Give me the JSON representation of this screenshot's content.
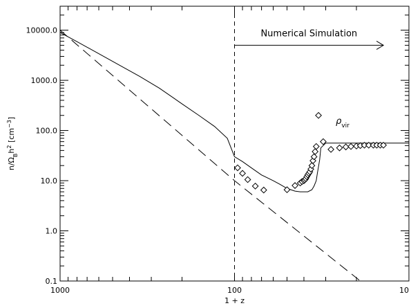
{
  "chart_data": {
    "type": "scatter",
    "x_scale": "log",
    "y_scale": "log",
    "x_reversed": true,
    "xlim": [
      1000,
      10
    ],
    "ylim": [
      0.1,
      30000
    ],
    "xlabel": "1 + z",
    "ylabel": "n/Ω_B h² [cm⁻³]",
    "ylabel_parts": {
      "main": "n/Ω",
      "sub": "B",
      "mid": "h",
      "sup": "2",
      "tail": " [cm",
      "sup2": "−3",
      "end": "]"
    },
    "x_ticks": [
      {
        "value": 1000,
        "label": "1000"
      },
      {
        "value": 100,
        "label": "100"
      },
      {
        "value": 10,
        "label": "10"
      }
    ],
    "y_ticks": [
      {
        "value": 0.1,
        "label": "0.1"
      },
      {
        "value": 1,
        "label": "1.0"
      },
      {
        "value": 10,
        "label": "10.0"
      },
      {
        "value": 100,
        "label": "100.0"
      },
      {
        "value": 1000,
        "label": "1000.0"
      },
      {
        "value": 10000,
        "label": "10000.0"
      }
    ],
    "grid": false,
    "annotations": {
      "simulation_label": "Numerical Simulation",
      "simulation_arrow_from_x": 100,
      "simulation_arrow_to_x": 14,
      "simulation_arrow_y": 5000,
      "vertical_line_x": 100,
      "rho_label_main": "ρ",
      "rho_label_sub": "vir",
      "rho_label_at": {
        "x": 24,
        "y": 135
      }
    },
    "series": [
      {
        "style": "solid-line",
        "x": [
          1000,
          800,
          600,
          450,
          350,
          270,
          200,
          160,
          130,
          110,
          100,
          90,
          80,
          70,
          60,
          55,
          50,
          45,
          42,
          40,
          38,
          36,
          35,
          34,
          33.5,
          32.5,
          32,
          30,
          20,
          10
        ],
        "y": [
          9000,
          5900,
          3400,
          1950,
          1200,
          700,
          340,
          200,
          120,
          70,
          30,
          24,
          18,
          13,
          10,
          8.5,
          7,
          6.2,
          6,
          6,
          6,
          6.6,
          7.8,
          10,
          14,
          26,
          45,
          56,
          56,
          56
        ]
      },
      {
        "style": "dashed-line",
        "x": [
          1000,
          100,
          19
        ],
        "y": [
          10000,
          10,
          0.1
        ]
      },
      {
        "style": "diamond-markers",
        "x": [
          96,
          90,
          84,
          76,
          68,
          50,
          45,
          42,
          41,
          40,
          39.5,
          39,
          38.5,
          38,
          37.5,
          37,
          36.5,
          36,
          35.5,
          35,
          34.5,
          34,
          33,
          31,
          28,
          25,
          23,
          21.5,
          20,
          19,
          18,
          17,
          16,
          15.3,
          14.6,
          14
        ],
        "y": [
          18,
          14,
          10.5,
          7.8,
          6.5,
          6.6,
          8,
          9,
          9.6,
          10,
          10.4,
          11,
          12,
          13,
          14,
          15,
          17,
          20,
          25,
          30,
          38,
          48,
          200,
          60,
          42,
          45,
          47,
          48,
          49,
          50,
          51,
          51,
          51,
          51,
          51,
          51
        ]
      }
    ]
  }
}
